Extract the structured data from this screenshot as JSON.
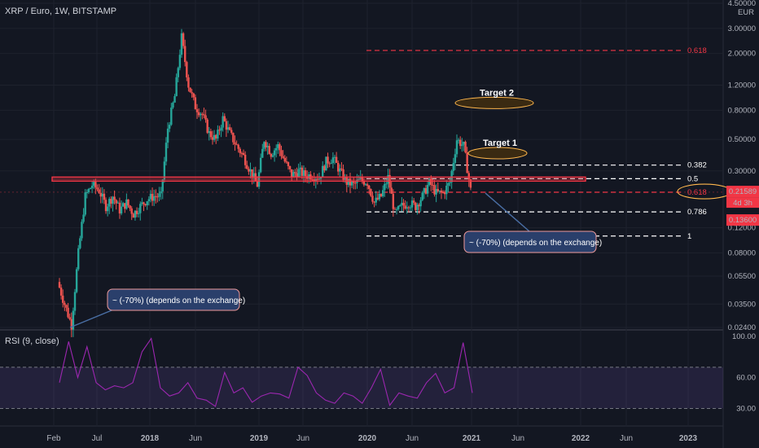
{
  "header": {
    "title": "XRP / Euro, 1W, BITSTAMP"
  },
  "rsi_panel": {
    "title": "RSI (9, close)"
  },
  "chart_data": {
    "type": "candlestick",
    "symbol": "XRP / Euro, 1W, BITSTAMP",
    "currency": "EUR",
    "y_scale": "log",
    "price_ticks": [
      "4.50000",
      "3.00000",
      "2.00000",
      "1.20000",
      "0.80000",
      "0.50000",
      "0.30000",
      "0.12000",
      "0.08000",
      "0.05500",
      "0.03500",
      "0.02400"
    ],
    "x_ticks": [
      "Feb",
      "Jul",
      "2018",
      "Jun",
      "2019",
      "Jun",
      "2020",
      "Jun",
      "2021",
      "Jun",
      "2022",
      "Jun",
      "2023"
    ],
    "current_price": {
      "value": "0.21589",
      "countdown": "4d 3h"
    },
    "red_price_label": "0.13600",
    "price_path": [
      [
        "2017-03",
        0.05
      ],
      [
        "2017-04",
        0.035
      ],
      [
        "2017-04",
        0.025
      ],
      [
        "2017-05",
        0.08
      ],
      [
        "2017-05",
        0.2
      ],
      [
        "2017-06",
        0.24
      ],
      [
        "2017-06",
        0.22
      ],
      [
        "2017-07",
        0.17
      ],
      [
        "2017-07",
        0.2
      ],
      [
        "2017-08",
        0.16
      ],
      [
        "2017-08",
        0.18
      ],
      [
        "2017-09",
        0.15
      ],
      [
        "2017-09",
        0.17
      ],
      [
        "2017-10",
        0.19
      ],
      [
        "2017-10",
        0.2
      ],
      [
        "2017-11",
        0.2
      ],
      [
        "2017-12",
        0.6
      ],
      [
        "2017-12",
        1.0
      ],
      [
        "2018-01",
        2.6
      ],
      [
        "2018-01",
        1.2
      ],
      [
        "2018-02",
        0.85
      ],
      [
        "2018-02",
        0.75
      ],
      [
        "2018-03",
        0.55
      ],
      [
        "2018-04",
        0.5
      ],
      [
        "2018-05",
        0.7
      ],
      [
        "2018-05",
        0.55
      ],
      [
        "2018-06",
        0.45
      ],
      [
        "2018-07",
        0.38
      ],
      [
        "2018-08",
        0.3
      ],
      [
        "2018-09",
        0.24
      ],
      [
        "2018-09",
        0.5
      ],
      [
        "2018-10",
        0.4
      ],
      [
        "2018-11",
        0.45
      ],
      [
        "2018-11",
        0.35
      ],
      [
        "2018-12",
        0.28
      ],
      [
        "2019-01",
        0.3
      ],
      [
        "2019-02",
        0.28
      ],
      [
        "2019-03",
        0.28
      ],
      [
        "2019-04",
        0.27
      ],
      [
        "2019-05",
        0.35
      ],
      [
        "2019-06",
        0.37
      ],
      [
        "2019-07",
        0.3
      ],
      [
        "2019-08",
        0.25
      ],
      [
        "2019-09",
        0.24
      ],
      [
        "2019-10",
        0.26
      ],
      [
        "2019-11",
        0.25
      ],
      [
        "2019-12",
        0.18
      ],
      [
        "2020-01",
        0.2
      ],
      [
        "2020-02",
        0.27
      ],
      [
        "2020-03",
        0.15
      ],
      [
        "2020-04",
        0.17
      ],
      [
        "2020-05",
        0.18
      ],
      [
        "2020-06",
        0.17
      ],
      [
        "2020-07",
        0.2
      ],
      [
        "2020-08",
        0.25
      ],
      [
        "2020-09",
        0.21
      ],
      [
        "2020-10",
        0.21
      ],
      [
        "2020-11",
        0.25
      ],
      [
        "2020-11",
        0.5
      ],
      [
        "2020-12",
        0.45
      ],
      [
        "2020-12",
        0.22
      ]
    ],
    "fib_upper": [
      {
        "label": "0.618",
        "price": 2.1,
        "color": "#f23645",
        "style": "dashed"
      }
    ],
    "fib_levels": [
      {
        "label": "0.382",
        "price": 0.33,
        "color": "#ffffff",
        "style": "dashed"
      },
      {
        "label": "0.5",
        "price": 0.265,
        "color": "#ffffff",
        "style": "dashed"
      },
      {
        "label": "0.618",
        "price": 0.213,
        "color": "#f23645",
        "style": "dashed"
      },
      {
        "label": "0.786",
        "price": 0.155,
        "color": "#ffffff",
        "style": "dashed"
      },
      {
        "label": "1",
        "price": 0.105,
        "color": "#ffffff",
        "style": "dashed"
      }
    ],
    "resistance_line": {
      "price": 0.265,
      "color": "#f23645"
    },
    "targets": [
      {
        "label": "Target 2",
        "price": 0.9
      },
      {
        "label": "Target 1",
        "price": 0.4
      }
    ],
    "callouts": [
      {
        "text": "~ (-70%) (depends on the exchange)"
      },
      {
        "text": "~ (-70%) (depends on the exchange)"
      }
    ],
    "rsi": {
      "ticks": [
        "100.00",
        "60.00",
        "30.00"
      ],
      "overbought": 70,
      "oversold": 30,
      "color": "#9c27b0",
      "values": [
        [
          "2017-03",
          55
        ],
        [
          "2017-04",
          95
        ],
        [
          "2017-05",
          60
        ],
        [
          "2017-06",
          90
        ],
        [
          "2017-07",
          55
        ],
        [
          "2017-08",
          48
        ],
        [
          "2017-09",
          52
        ],
        [
          "2017-10",
          50
        ],
        [
          "2017-11",
          55
        ],
        [
          "2017-12",
          85
        ],
        [
          "2018-01",
          98
        ],
        [
          "2018-02",
          50
        ],
        [
          "2018-03",
          42
        ],
        [
          "2018-04",
          45
        ],
        [
          "2018-05",
          55
        ],
        [
          "2018-06",
          40
        ],
        [
          "2018-07",
          38
        ],
        [
          "2018-08",
          32
        ],
        [
          "2018-09",
          65
        ],
        [
          "2018-10",
          45
        ],
        [
          "2018-11",
          50
        ],
        [
          "2018-12",
          36
        ],
        [
          "2019-01",
          42
        ],
        [
          "2019-02",
          45
        ],
        [
          "2019-03",
          44
        ],
        [
          "2019-04",
          40
        ],
        [
          "2019-05",
          70
        ],
        [
          "2019-06",
          62
        ],
        [
          "2019-07",
          45
        ],
        [
          "2019-08",
          38
        ],
        [
          "2019-09",
          35
        ],
        [
          "2019-10",
          45
        ],
        [
          "2019-11",
          42
        ],
        [
          "2019-12",
          35
        ],
        [
          "2020-01",
          50
        ],
        [
          "2020-02",
          68
        ],
        [
          "2020-03",
          33
        ],
        [
          "2020-04",
          45
        ],
        [
          "2020-05",
          42
        ],
        [
          "2020-06",
          40
        ],
        [
          "2020-07",
          55
        ],
        [
          "2020-08",
          64
        ],
        [
          "2020-09",
          45
        ],
        [
          "2020-10",
          50
        ],
        [
          "2020-11",
          94
        ],
        [
          "2020-12",
          45
        ]
      ]
    }
  }
}
